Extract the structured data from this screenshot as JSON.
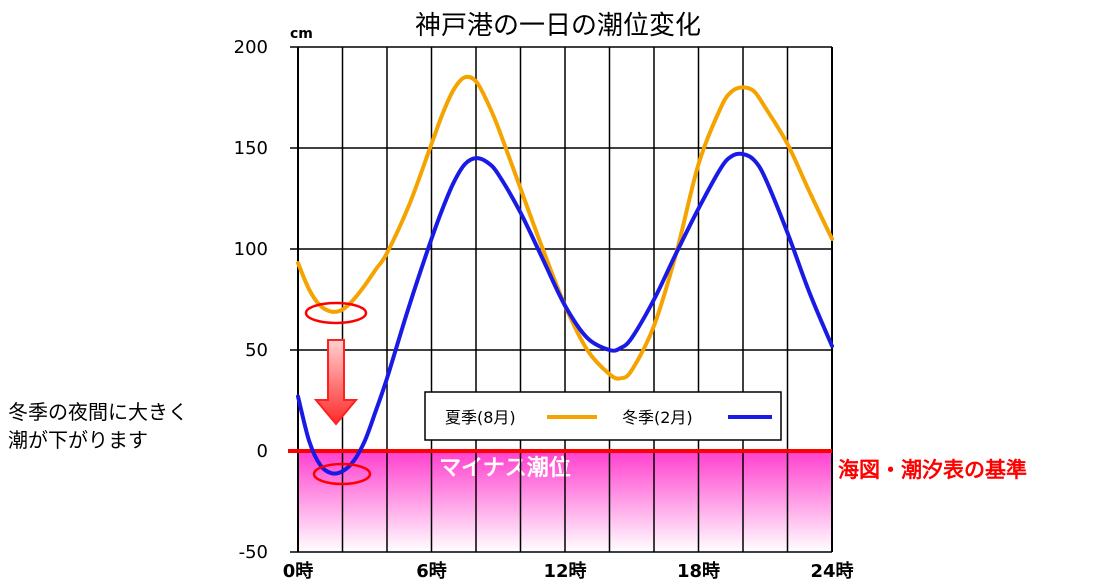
{
  "chart_data": {
    "type": "line",
    "title": "神戸港の一日の潮位変化",
    "unit": "cm",
    "ylim": [
      -50,
      200
    ],
    "yticks": [
      200,
      150,
      100,
      50,
      0,
      -50
    ],
    "ytick_labels": [
      "200",
      "150",
      "100",
      "50",
      "0",
      "-50"
    ],
    "xlim": [
      0,
      24
    ],
    "xticks": [
      0,
      6,
      12,
      18,
      24
    ],
    "xtick_labels": [
      "0時",
      "6時",
      "12時",
      "18時",
      "24時"
    ],
    "grid": true,
    "series": [
      {
        "name": "夏季(8月)",
        "color": "#f5a300",
        "x": [
          0,
          0.5,
          1,
          1.5,
          2,
          2.5,
          3,
          3.5,
          4,
          5,
          6,
          6.5,
          7,
          7.5,
          8,
          8.5,
          9,
          10,
          11,
          12,
          13,
          14,
          14.5,
          15,
          16,
          17,
          18,
          19,
          19.5,
          20,
          20.5,
          21,
          22,
          23,
          24
        ],
        "y": [
          93,
          80,
          72,
          69,
          70,
          75,
          82,
          90,
          98,
          122,
          152,
          167,
          179,
          185,
          183,
          173,
          160,
          130,
          100,
          72,
          50,
          38,
          36,
          40,
          62,
          98,
          142,
          170,
          178,
          180,
          178,
          170,
          152,
          128,
          105
        ]
      },
      {
        "name": "冬季(2月)",
        "color": "#1a1ae6",
        "x": [
          0,
          0.5,
          1,
          1.5,
          2,
          2.5,
          3,
          3.5,
          4,
          5,
          6,
          6.5,
          7,
          7.5,
          8,
          8.5,
          9,
          10,
          11,
          12,
          13,
          14,
          14.5,
          15,
          16,
          17,
          18,
          19,
          19.5,
          20,
          20.5,
          21,
          22,
          23,
          24
        ],
        "y": [
          27,
          5,
          -7,
          -11,
          -10,
          -5,
          5,
          20,
          36,
          72,
          105,
          120,
          133,
          142,
          145,
          143,
          137,
          118,
          95,
          72,
          56,
          50,
          51,
          56,
          75,
          98,
          120,
          140,
          146,
          147,
          144,
          135,
          108,
          78,
          52
        ]
      }
    ],
    "legend": {
      "placement": "bottom-center",
      "entries": [
        "夏季(8月)",
        "冬季(2月)"
      ]
    },
    "reference_line": {
      "value": 0,
      "color": "#ff0000",
      "label": "海図・潮汐表の基準"
    },
    "negative_region_label": "マイナス潮位",
    "annotation": {
      "text_lines": [
        "冬季の夜間に大きく",
        "潮が下がります"
      ]
    }
  }
}
